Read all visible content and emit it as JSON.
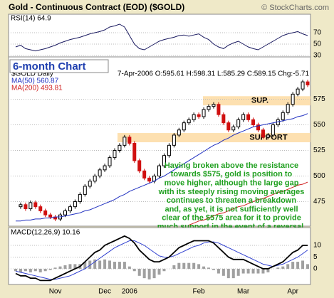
{
  "header": {
    "title": "Gold - Continuous Contract (EOD) ($GOLD)",
    "watermark": "© StockCharts.com"
  },
  "chart_data": [
    {
      "type": "line",
      "title": "RSI(14) 64.9",
      "ylim": [
        27.5,
        100
      ],
      "yticks": [
        70,
        50,
        30
      ],
      "grid": true,
      "series": [
        {
          "name": "RSI(14)",
          "color": "#1a1a60",
          "values": [
            45,
            48,
            42,
            40,
            38,
            40,
            42,
            45,
            48,
            52,
            55,
            58,
            60,
            62,
            65,
            68,
            70,
            72,
            75,
            80,
            82,
            85,
            80,
            65,
            50,
            42,
            40,
            45,
            50,
            55,
            58,
            60,
            62,
            65,
            66,
            64,
            66,
            68,
            62,
            58,
            50,
            45,
            42,
            48,
            52,
            55,
            50,
            45,
            42,
            40,
            45,
            50,
            55,
            60,
            65,
            68,
            70,
            72,
            68,
            65
          ]
        }
      ]
    },
    {
      "type": "candlestick",
      "title": "6-month Chart",
      "subtitle": "7-Apr-2006 O:595.61 H:598.31 L:585.29 C:589.15 Chg:-5.71",
      "ylim": [
        451,
        615
      ],
      "yticks": [
        575,
        550,
        525,
        500,
        475
      ],
      "grid": true,
      "categories": [
        null,
        null,
        null,
        null,
        null,
        null,
        null,
        null,
        "Nov",
        null,
        null,
        null,
        null,
        null,
        null,
        null,
        null,
        null,
        "Dec",
        null,
        null,
        null,
        null,
        "2006",
        null,
        null,
        null,
        null,
        null,
        null,
        null,
        null,
        null,
        null,
        null,
        null,
        null,
        "Feb",
        null,
        null,
        null,
        null,
        null,
        null,
        null,
        null,
        "Mar",
        null,
        null,
        null,
        null,
        null,
        null,
        null,
        null,
        null,
        "Apr",
        null,
        null,
        null
      ],
      "series": [
        {
          "name": "$GOLD Daily",
          "up_color": "#000000",
          "down_color": "#d01010",
          "values": [
            470,
            472,
            468,
            474,
            470,
            466,
            462,
            460,
            458,
            462,
            466,
            470,
            475,
            482,
            490,
            495,
            500,
            506,
            510,
            518,
            525,
            530,
            538,
            532,
            515,
            505,
            498,
            495,
            500,
            510,
            520,
            530,
            540,
            545,
            552,
            555,
            560,
            558,
            565,
            568,
            570,
            560,
            552,
            545,
            548,
            555,
            560,
            555,
            550,
            545,
            538,
            540,
            550,
            555,
            562,
            570,
            580,
            585,
            592,
            589
          ]
        },
        {
          "name": "MA(50) 560.87",
          "color": "#2030c0",
          "values": [
            456,
            456,
            457,
            457,
            458,
            458,
            459,
            459,
            460,
            460,
            461,
            462,
            463,
            464,
            466,
            467,
            469,
            471,
            473,
            475,
            477,
            480,
            482,
            485,
            487,
            489,
            491,
            493,
            495,
            498,
            500,
            503,
            506,
            509,
            512,
            515,
            518,
            521,
            524,
            527,
            530,
            532,
            535,
            537,
            540,
            542,
            544,
            546,
            548,
            549,
            550,
            551,
            552,
            553,
            554,
            555,
            556,
            558,
            559,
            561
          ]
        },
        {
          "name": "MA(200) 493.81",
          "color": "#d02020",
          "values": [
            null,
            null,
            null,
            null,
            null,
            null,
            null,
            null,
            null,
            null,
            null,
            null,
            null,
            null,
            null,
            null,
            null,
            null,
            null,
            null,
            null,
            null,
            null,
            null,
            null,
            null,
            null,
            null,
            null,
            null,
            null,
            null,
            null,
            null,
            null,
            452,
            454,
            456,
            457,
            459,
            461,
            463,
            464,
            466,
            468,
            470,
            471,
            473,
            475,
            477,
            478,
            480,
            482,
            484,
            485,
            487,
            489,
            491,
            492,
            494
          ]
        }
      ],
      "bands": [
        {
          "label": "SUP.",
          "low": 569,
          "high": 578,
          "color": "#fde0b0"
        },
        {
          "label": "SUPPORT",
          "low": 533,
          "high": 542,
          "color": "#fde0b0"
        }
      ],
      "annotation": {
        "color": "#20a020",
        "lines": [
          "Having broken above the resistance",
          "towards $575, gold is position to",
          "move higher, although the large gap",
          "with its steeply rising moving averages",
          "continues to threaten a breakdown",
          "and, as yet, it is not sufficiently well",
          "clear of the $575 area for it to provide",
          "much support in the event of a reversal."
        ]
      }
    },
    {
      "type": "macd",
      "title": "MACD(12,26,9) 10.16",
      "ylim": [
        -6.7,
        17
      ],
      "yticks": [
        10,
        5,
        0
      ],
      "grid": true,
      "series": [
        {
          "name": "MACD",
          "color": "#000000",
          "values": [
            -2,
            -3,
            -3,
            -4,
            -4,
            -5,
            -5,
            -5,
            -4,
            -3,
            -2,
            -1,
            0,
            1,
            3,
            5,
            7,
            8,
            10,
            11,
            12,
            13,
            14,
            13,
            11,
            8,
            6,
            4,
            3,
            3,
            4,
            5,
            7,
            9,
            10,
            11,
            12,
            12,
            12,
            12,
            11,
            9,
            7,
            5,
            4,
            4,
            4,
            3,
            2,
            1,
            0,
            0,
            1,
            2,
            3,
            5,
            7,
            8,
            10,
            10
          ]
        },
        {
          "name": "Signal",
          "color": "#3040d0",
          "values": [
            -1,
            -1.5,
            -2,
            -2.5,
            -3,
            -3.5,
            -4,
            -4.5,
            -4.5,
            -4,
            -3.5,
            -3,
            -2,
            -1,
            0,
            1.5,
            3,
            4.5,
            6,
            7.5,
            9,
            10,
            11,
            12,
            12,
            11,
            10,
            8.5,
            7,
            5.5,
            5,
            5,
            5.5,
            6.5,
            7.5,
            8.5,
            9.5,
            10,
            11,
            11.5,
            11.5,
            11,
            10,
            9,
            8,
            7,
            6,
            5,
            4,
            3,
            2,
            1.5,
            1,
            1.5,
            2,
            3,
            4,
            5,
            6.5,
            8
          ]
        },
        {
          "name": "Histogram",
          "color": "#a0a0a0",
          "values": [
            -1,
            -1.5,
            -1,
            -1.5,
            -1,
            -1.5,
            -1,
            -0.5,
            0.5,
            1,
            1.5,
            2,
            2,
            2,
            3,
            3.5,
            4,
            3.5,
            4,
            3.5,
            3,
            3,
            3,
            1,
            -1,
            -3,
            -4,
            -4.5,
            -4,
            -2.5,
            -1,
            0,
            1.5,
            2.5,
            2.5,
            2.5,
            2.5,
            2,
            1,
            0.5,
            -0.5,
            -2,
            -3,
            -4,
            -4,
            -3,
            -2,
            -2,
            -2,
            -2,
            -2,
            -1.5,
            0,
            0.5,
            1,
            2,
            3,
            3,
            3.5,
            2
          ]
        }
      ]
    }
  ]
}
